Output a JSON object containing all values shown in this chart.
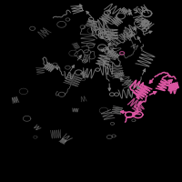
{
  "background_color": "#000000",
  "main_color": "#7a7a7a",
  "highlight_color": "#d955a0",
  "figsize": [
    2.0,
    2.0
  ],
  "dpi": 100,
  "seed": 7,
  "linewidth_gray": 0.7,
  "linewidth_pink": 1.1,
  "alpha_gray": 0.9,
  "alpha_pink": 1.0,
  "gray_xlim": [
    0.02,
    0.8
  ],
  "gray_ylim": [
    0.18,
    0.95
  ],
  "pink_xlim": [
    0.62,
    0.95
  ],
  "pink_ylim": [
    0.35,
    0.75
  ],
  "n_gray_helices": 22,
  "n_gray_loops": 40,
  "n_gray_strands": 15,
  "n_pink_helices": 5,
  "n_pink_loops": 10,
  "n_pink_strands": 8
}
